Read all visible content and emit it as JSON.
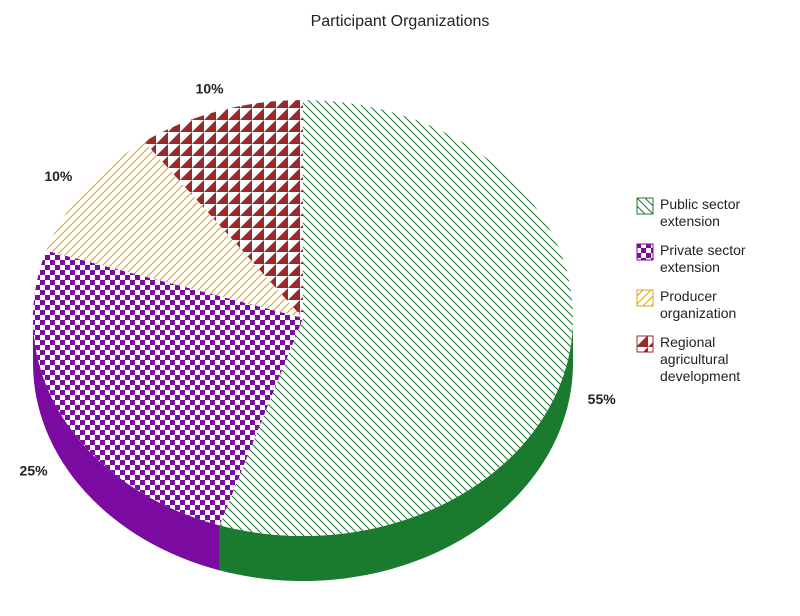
{
  "chart_data": {
    "type": "pie",
    "title": "Participant Organizations",
    "categories": [
      "Public sector extension",
      "Private sector extension",
      "Producer organization",
      "Regional agricultural development"
    ],
    "values": [
      55,
      25,
      10,
      10
    ],
    "value_labels": [
      "55%",
      "25%",
      "10%",
      "10%"
    ],
    "colors": [
      "#1a7a2e",
      "#7a0aa0",
      "#e0a020",
      "#9a2a2a"
    ],
    "hatches": [
      "diagonal-down",
      "checker",
      "diagonal-up",
      "triangles"
    ],
    "legend": "right"
  }
}
